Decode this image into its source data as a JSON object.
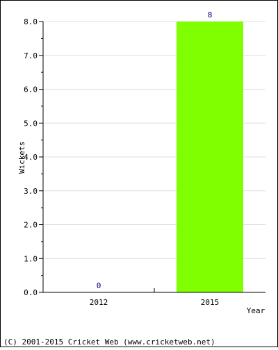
{
  "chart_data": {
    "type": "bar",
    "categories": [
      "2012",
      "2015"
    ],
    "values": [
      0,
      8
    ],
    "data_labels": [
      "0",
      "8"
    ],
    "title": "",
    "xlabel": "Year",
    "ylabel": "Wickets",
    "ylim": [
      0,
      8
    ],
    "yticks": [
      "0.0",
      "1.0",
      "2.0",
      "3.0",
      "4.0",
      "5.0",
      "6.0",
      "7.0",
      "8.0"
    ],
    "grid": true,
    "bar_color": "#80ff00",
    "data_label_color": "#000080"
  },
  "footer": {
    "copyright": "(C) 2001-2015 Cricket Web (www.cricketweb.net)"
  }
}
